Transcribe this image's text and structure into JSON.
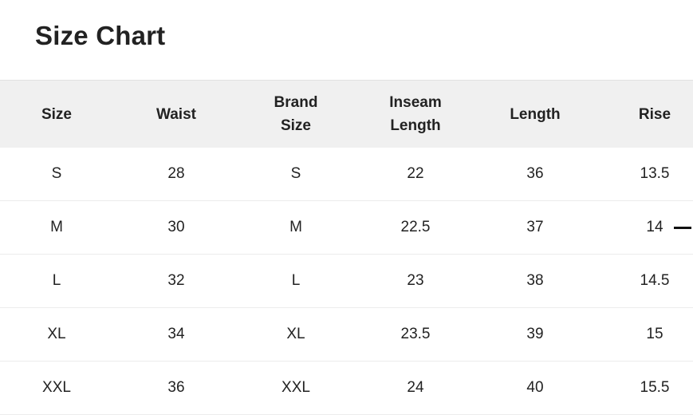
{
  "title": "Size Chart",
  "table": {
    "headers": [
      "Size",
      "Waist",
      "Brand\nSize",
      "Inseam\nLength",
      "Length",
      "Rise"
    ],
    "rows": [
      [
        "S",
        "28",
        "S",
        "22",
        "36",
        "13.5"
      ],
      [
        "M",
        "30",
        "M",
        "22.5",
        "37",
        "14"
      ],
      [
        "L",
        "32",
        "L",
        "23",
        "38",
        "14.5"
      ],
      [
        "XL",
        "34",
        "XL",
        "23.5",
        "39",
        "15"
      ],
      [
        "XXL",
        "36",
        "XXL",
        "24",
        "40",
        "15.5"
      ]
    ]
  }
}
